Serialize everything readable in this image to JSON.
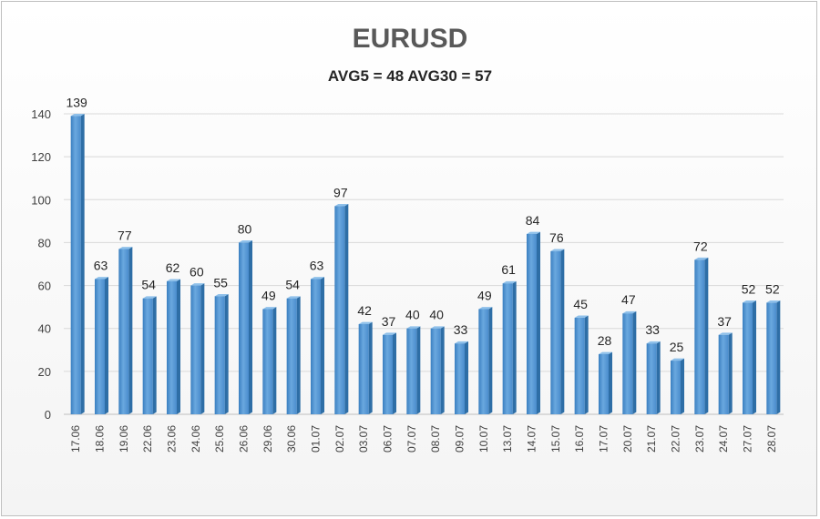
{
  "chart_data": {
    "type": "bar",
    "title": "EURUSD",
    "subtitle": "AVG5 = 48 AVG30 = 57",
    "categories": [
      "17.06",
      "18.06",
      "19.06",
      "22.06",
      "23.06",
      "24.06",
      "25.06",
      "26.06",
      "29.06",
      "30.06",
      "01.07",
      "02.07",
      "03.07",
      "06.07",
      "07.07",
      "08.07",
      "09.07",
      "10.07",
      "13.07",
      "14.07",
      "15.07",
      "16.07",
      "17.07",
      "20.07",
      "21.07",
      "22.07",
      "23.07",
      "24.07",
      "27.07",
      "28.07"
    ],
    "values": [
      139,
      63,
      77,
      54,
      62,
      60,
      55,
      80,
      49,
      54,
      63,
      97,
      42,
      37,
      40,
      40,
      33,
      49,
      61,
      84,
      76,
      45,
      28,
      47,
      33,
      25,
      72,
      37,
      52,
      52
    ],
    "ylim": [
      0,
      140
    ],
    "yticks": [
      0,
      20,
      40,
      60,
      80,
      100,
      120,
      140
    ],
    "grid": true,
    "legend": "none",
    "bar_color": "#5b9bd5",
    "bar_dark": "#2e6ea6"
  }
}
